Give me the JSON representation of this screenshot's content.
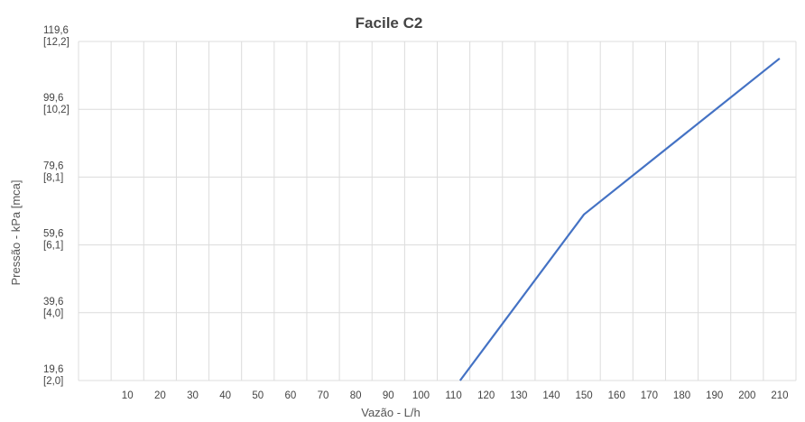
{
  "chart_data": {
    "type": "line",
    "title": "Facile C2",
    "xlabel": "Vazão - L/h",
    "ylabel": "Pressão - kPa [mca]",
    "xlim": [
      0,
      210
    ],
    "ylim": [
      19.6,
      119.6
    ],
    "x_ticks": [
      "10",
      "20",
      "30",
      "40",
      "50",
      "60",
      "70",
      "80",
      "90",
      "100",
      "110",
      "120",
      "130",
      "140",
      "150",
      "160",
      "170",
      "180",
      "190",
      "200",
      "210"
    ],
    "y_ticks": [
      {
        "value": 19.6,
        "label": "19,6",
        "sublabel": "[2,0]"
      },
      {
        "value": 39.6,
        "label": "39,6",
        "sublabel": "[4,0]"
      },
      {
        "value": 59.6,
        "label": "59,6",
        "sublabel": "[6,1]"
      },
      {
        "value": 79.6,
        "label": "79,6",
        "sublabel": "[8,1]"
      },
      {
        "value": 99.6,
        "label": "99,6",
        "sublabel": "[10,2]"
      },
      {
        "value": 119.6,
        "label": "119,6",
        "sublabel": "[12,2]"
      }
    ],
    "grid": true,
    "legend": "none",
    "series": [
      {
        "color": "#4472c4",
        "x": [
          112,
          150,
          210
        ],
        "y": [
          19.6,
          68.6,
          114.6
        ]
      }
    ]
  }
}
